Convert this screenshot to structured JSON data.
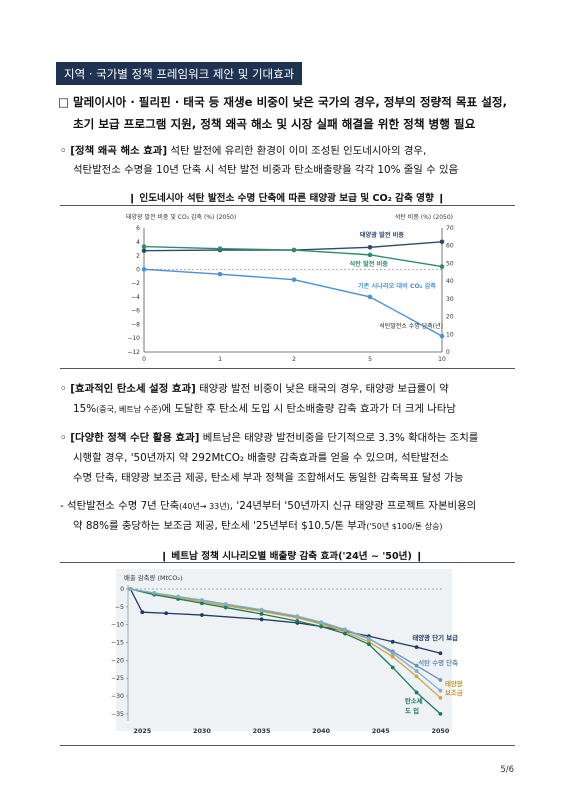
{
  "section_title": "지역 · 국가별 정책 프레임워크 제안 및 기대효과",
  "heading": {
    "line1": "□ 말레이시아 · 필리핀 · 태국 등 재생e 비중이 낮은 국가의 경우, 정부의 정량적 목표 설정,",
    "line2": "초기 보급 프로그램 지원, 정책 왜곡 해소 및 시장 실패 해결을 위한 정책 병행 필요"
  },
  "p1": {
    "label": "◦ [정책 왜곡 해소 효과]",
    "line1": " 석탄 발전에 유리한 환경이 이미 조성된 인도네시아의 경우,",
    "line2": "석탄발전소 수명을 10년 단축 시 석탄 발전 비중과 탄소배출량을 각각 10% 줄일 수 있음"
  },
  "chart1_caption": "❙ 인도네시아 석탄 발전소 수명 단축에 따른 태양광 보급 및 CO₂ 감축 영향 ❙",
  "p2": {
    "label": "◦ [효과적인 탄소세 설정 효과]",
    "line1": " 태양광 발전 비중이 낮은 태국의 경우, 태양광 보급률이 약",
    "line2a": "15%",
    "line2b": "(중국, 베트남 수준)",
    "line2c": "에 도달한 후 탄소세 도입 시 탄소배출량 감축 효과가 더 크게 나타남"
  },
  "p3": {
    "label": "◦ [다양한 정책 수단 활용 효과]",
    "line1": " 베트남은 태양광 발전비중을 단기적으로 3.3% 확대하는 조치를",
    "line2": "시행할 경우, '50년까지 약 292MtCO₂ 배출량 감축효과를 얻을 수 있으며, 석탄발전소",
    "line3": "수명 단축, 태양광 보조금 제공, 탄소세 부과 정책을 조합해서도 동일한 감축목표 달성 가능"
  },
  "p4": {
    "line1a": "- 석탄발전소 수명 7년 단축",
    "line1b": "(40년→ 33년)",
    "line1c": ", '24년부터 '50년까지 신규 태양광 프로젝트 자본비용의",
    "line2a": "약 88%를 충당하는 보조금 제공, 탄소세 '25년부터 $10.5/톤 부과",
    "line2b": "('50년 $100/톤 상승)"
  },
  "chart2_caption": "❙ 베트남 정책 시나리오별 배출량 감축 효과('24년 ~ '50년) ❙",
  "page_number": "5/6",
  "chart_data": [
    {
      "type": "line",
      "ylabel_left": "태양광 발전 비중 및 CO₂ 감축 (%) (2050)",
      "ylabel_right": "석탄 비중 (%) (2050)",
      "xlabel": "석탄발전소 수명 단축(년)",
      "categories": [
        "0",
        "1",
        "2",
        "5",
        "10"
      ],
      "ylim_left": [
        -12,
        6
      ],
      "ylim_right": [
        0,
        70
      ],
      "yticks_left": [
        "6",
        "4",
        "2",
        "0",
        "−2",
        "−4",
        "−6",
        "−8",
        "−10",
        "−12"
      ],
      "yticks_right": [
        "70",
        "60",
        "50",
        "40",
        "30",
        "20",
        "10",
        "0"
      ],
      "series": [
        {
          "name": "태양광 발전 비중",
          "axis": "left",
          "color": "#2d4a6e",
          "values": [
            2.7,
            2.8,
            2.8,
            3.2,
            4.0
          ]
        },
        {
          "name": "석탄 발전 비중",
          "axis": "left",
          "color": "#2e8b6e",
          "values": [
            3.3,
            3.0,
            2.8,
            2.1,
            0.4
          ]
        },
        {
          "name": "기존 시나리오 대비 CO₂ 감축",
          "axis": "left",
          "color": "#4a90d9",
          "values": [
            0,
            -0.7,
            -1.5,
            -4.0,
            -9.7
          ]
        }
      ],
      "grid": false
    },
    {
      "type": "line",
      "ylabel": "배출 감축량 (MtCO₂)",
      "x": [
        "2025",
        "2030",
        "2035",
        "2040",
        "2045",
        "2050"
      ],
      "ylim": [
        -38,
        1
      ],
      "yticks": [
        "0",
        "−5",
        "−10",
        "−15",
        "−20",
        "−25",
        "−30",
        "−35"
      ],
      "series": [
        {
          "name": "태양광 단기 보급",
          "color": "#1f3a63",
          "points": [
            [
              2024,
              0
            ],
            [
              2025,
              -6.5
            ],
            [
              2027,
              -6.8
            ],
            [
              2030,
              -7.3
            ],
            [
              2035,
              -8.5
            ],
            [
              2038,
              -9.5
            ],
            [
              2040,
              -10.5
            ],
            [
              2042,
              -11.8
            ],
            [
              2044,
              -13.2
            ],
            [
              2046,
              -14.8
            ],
            [
              2048,
              -16.3
            ],
            [
              2050,
              -18
            ]
          ]
        },
        {
          "name": "석탄 수명 단축",
          "color": "#6a8fb3",
          "points": [
            [
              2024,
              0
            ],
            [
              2026,
              -1.2
            ],
            [
              2028,
              -2.2
            ],
            [
              2030,
              -3.2
            ],
            [
              2032,
              -4.3
            ],
            [
              2035,
              -6
            ],
            [
              2038,
              -7.8
            ],
            [
              2040,
              -9.5
            ],
            [
              2042,
              -11.5
            ],
            [
              2044,
              -14
            ],
            [
              2046,
              -17.5
            ],
            [
              2048,
              -21.5
            ],
            [
              2050,
              -25.5
            ]
          ]
        },
        {
          "name": "태양광 보조금",
          "color": "#d4a33c",
          "points": [
            [
              2024,
              0
            ],
            [
              2026,
              -1.3
            ],
            [
              2028,
              -2.5
            ],
            [
              2030,
              -3.6
            ],
            [
              2032,
              -4.7
            ],
            [
              2035,
              -6.3
            ],
            [
              2038,
              -8.1
            ],
            [
              2040,
              -9.8
            ],
            [
              2042,
              -12
            ],
            [
              2044,
              -14.8
            ],
            [
              2046,
              -19
            ],
            [
              2048,
              -24.5
            ],
            [
              2050,
              -30.5
            ]
          ]
        },
        {
          "name": "탄소세 도입",
          "color": "#1d7a5f",
          "points": [
            [
              2024,
              0
            ],
            [
              2026,
              -1.6
            ],
            [
              2028,
              -2.8
            ],
            [
              2030,
              -4
            ],
            [
              2032,
              -5.2
            ],
            [
              2035,
              -7
            ],
            [
              2038,
              -9
            ],
            [
              2040,
              -10.5
            ],
            [
              2042,
              -12.5
            ],
            [
              2044,
              -15.5
            ],
            [
              2046,
              -22
            ],
            [
              2048,
              -29
            ],
            [
              2050,
              -35
            ]
          ]
        },
        {
          "name": "태양광 보조금 (2)",
          "color": "#7fb0c8",
          "points": [
            [
              2024,
              0
            ],
            [
              2026,
              -1.1
            ],
            [
              2028,
              -2.1
            ],
            [
              2030,
              -3.1
            ],
            [
              2032,
              -4.2
            ],
            [
              2035,
              -5.8
            ],
            [
              2038,
              -7.6
            ],
            [
              2040,
              -9.3
            ],
            [
              2042,
              -11.3
            ],
            [
              2044,
              -13.8
            ],
            [
              2046,
              -18
            ],
            [
              2048,
              -23
            ],
            [
              2050,
              -28.5
            ]
          ]
        }
      ],
      "labels": {
        "s1": "태양광 단기 보급",
        "s2": "석탄 수명 단축",
        "s3a": "태양광",
        "s3b": "보조금",
        "s4a": "탄소세",
        "s4b": "도  입"
      }
    }
  ]
}
